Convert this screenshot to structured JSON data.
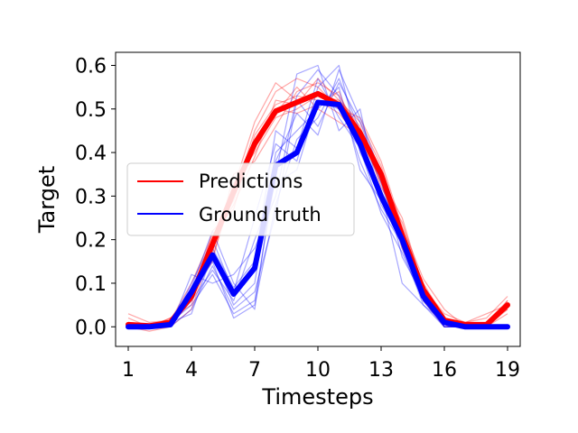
{
  "chart_data": {
    "type": "line",
    "title": "",
    "xlabel": "Timesteps",
    "ylabel": "Target",
    "xlim": [
      0.4,
      19.6
    ],
    "ylim": [
      -0.045,
      0.63
    ],
    "xticks": [
      1,
      4,
      7,
      10,
      13,
      16,
      19
    ],
    "yticks": [
      0.0,
      0.1,
      0.2,
      0.3,
      0.4,
      0.5,
      0.6
    ],
    "ytick_labels": [
      "0.0",
      "0.1",
      "0.2",
      "0.3",
      "0.4",
      "0.5",
      "0.6"
    ],
    "grid": false,
    "legend": {
      "placement": "center-left",
      "entries": [
        {
          "label": "Predictions",
          "color": "#ff0000"
        },
        {
          "label": "Ground truth",
          "color": "#0000ff"
        }
      ]
    },
    "x": [
      1,
      2,
      3,
      4,
      5,
      6,
      7,
      8,
      9,
      10,
      11,
      12,
      13,
      14,
      15,
      16,
      17,
      18,
      19
    ],
    "series": [
      {
        "kind": "prediction-mean",
        "color": "#ff0000",
        "values": [
          0.005,
          0.002,
          0.01,
          0.07,
          0.19,
          0.31,
          0.42,
          0.495,
          0.515,
          0.535,
          0.51,
          0.445,
          0.35,
          0.21,
          0.085,
          0.015,
          0.005,
          0.005,
          0.05
        ]
      },
      {
        "kind": "ground-truth-mean",
        "color": "#0000ff",
        "values": [
          0.0,
          0.0,
          0.005,
          0.08,
          0.165,
          0.075,
          0.135,
          0.37,
          0.4,
          0.515,
          0.51,
          0.42,
          0.3,
          0.2,
          0.07,
          0.01,
          0.0,
          0.0,
          0.0
        ]
      }
    ],
    "prediction_samples": [
      [
        0.01,
        0.0,
        0.005,
        0.06,
        0.2,
        0.3,
        0.45,
        0.54,
        0.57,
        0.55,
        0.5,
        0.44,
        0.33,
        0.2,
        0.07,
        0.0,
        0.0,
        0.01,
        0.06
      ],
      [
        0.0,
        0.005,
        0.01,
        0.09,
        0.17,
        0.33,
        0.4,
        0.48,
        0.5,
        0.53,
        0.52,
        0.47,
        0.37,
        0.22,
        0.1,
        0.02,
        0.005,
        0.0,
        0.04
      ],
      [
        0.02,
        0.0,
        0.02,
        0.05,
        0.22,
        0.27,
        0.44,
        0.51,
        0.53,
        0.52,
        0.49,
        0.43,
        0.34,
        0.25,
        0.09,
        0.03,
        0.01,
        0.02,
        0.07
      ],
      [
        0.0,
        -0.01,
        0.0,
        0.08,
        0.15,
        0.35,
        0.38,
        0.46,
        0.54,
        0.56,
        0.53,
        0.45,
        0.36,
        0.18,
        0.08,
        0.01,
        0.0,
        0.0,
        0.03
      ],
      [
        0.03,
        0.01,
        0.015,
        0.1,
        0.21,
        0.29,
        0.43,
        0.5,
        0.49,
        0.51,
        0.54,
        0.42,
        0.31,
        0.19,
        0.06,
        0.0,
        0.01,
        0.03,
        0.05
      ],
      [
        0.0,
        0.0,
        0.0,
        0.04,
        0.18,
        0.32,
        0.47,
        0.56,
        0.52,
        0.54,
        0.5,
        0.48,
        0.38,
        0.23,
        0.11,
        0.04,
        0.0,
        0.0,
        0.06
      ],
      [
        0.01,
        0.005,
        0.01,
        0.07,
        0.16,
        0.31,
        0.41,
        0.49,
        0.55,
        0.5,
        0.47,
        0.44,
        0.35,
        0.21,
        0.07,
        0.02,
        0.005,
        0.01,
        0.04
      ],
      [
        0.0,
        0.0,
        0.02,
        0.06,
        0.2,
        0.28,
        0.39,
        0.52,
        0.51,
        0.57,
        0.52,
        0.46,
        0.32,
        0.24,
        0.09,
        0.01,
        0.0,
        0.0,
        0.05
      ]
    ],
    "ground_truth_samples": [
      [
        0.0,
        0.0,
        0.01,
        0.05,
        0.12,
        0.03,
        0.06,
        0.35,
        0.58,
        0.6,
        0.45,
        0.5,
        0.28,
        0.2,
        0.06,
        0.0,
        0.0,
        0.0,
        0.0
      ],
      [
        0.0,
        0.0,
        0.0,
        0.1,
        0.2,
        0.08,
        0.25,
        0.42,
        0.38,
        0.55,
        0.6,
        0.4,
        0.3,
        0.21,
        0.07,
        0.02,
        0.0,
        0.0,
        0.0
      ],
      [
        0.0,
        0.0,
        0.005,
        0.07,
        0.15,
        0.02,
        0.05,
        0.28,
        0.43,
        0.48,
        0.57,
        0.45,
        0.33,
        0.18,
        0.05,
        0.0,
        0.0,
        0.0,
        0.0
      ],
      [
        0.0,
        0.0,
        0.0,
        0.12,
        0.1,
        0.12,
        0.18,
        0.3,
        0.53,
        0.59,
        0.53,
        0.38,
        0.27,
        0.19,
        0.06,
        0.01,
        0.0,
        0.0,
        0.0
      ],
      [
        0.0,
        0.0,
        0.01,
        0.03,
        0.17,
        0.05,
        0.1,
        0.4,
        0.45,
        0.5,
        0.55,
        0.36,
        0.29,
        0.22,
        0.08,
        0.0,
        0.0,
        0.0,
        0.0
      ],
      [
        0.0,
        0.0,
        0.0,
        0.09,
        0.22,
        0.1,
        0.04,
        0.38,
        0.49,
        0.44,
        0.59,
        0.48,
        0.35,
        0.16,
        0.07,
        0.0,
        0.0,
        0.0,
        0.0
      ],
      [
        0.0,
        0.0,
        0.005,
        0.06,
        0.13,
        0.06,
        0.2,
        0.33,
        0.36,
        0.52,
        0.5,
        0.43,
        0.31,
        0.1,
        0.05,
        0.01,
        0.0,
        0.0,
        0.0
      ],
      [
        0.0,
        0.0,
        0.0,
        0.08,
        0.18,
        0.09,
        0.15,
        0.45,
        0.41,
        0.57,
        0.48,
        0.41,
        0.26,
        0.17,
        0.06,
        0.0,
        0.0,
        0.0,
        0.0
      ],
      [
        0.0,
        0.0,
        0.0,
        0.04,
        0.14,
        0.04,
        0.08,
        0.26,
        0.52,
        0.46,
        0.56,
        0.47,
        0.34,
        0.21,
        0.07,
        0.01,
        0.0,
        0.0,
        0.0
      ]
    ]
  }
}
